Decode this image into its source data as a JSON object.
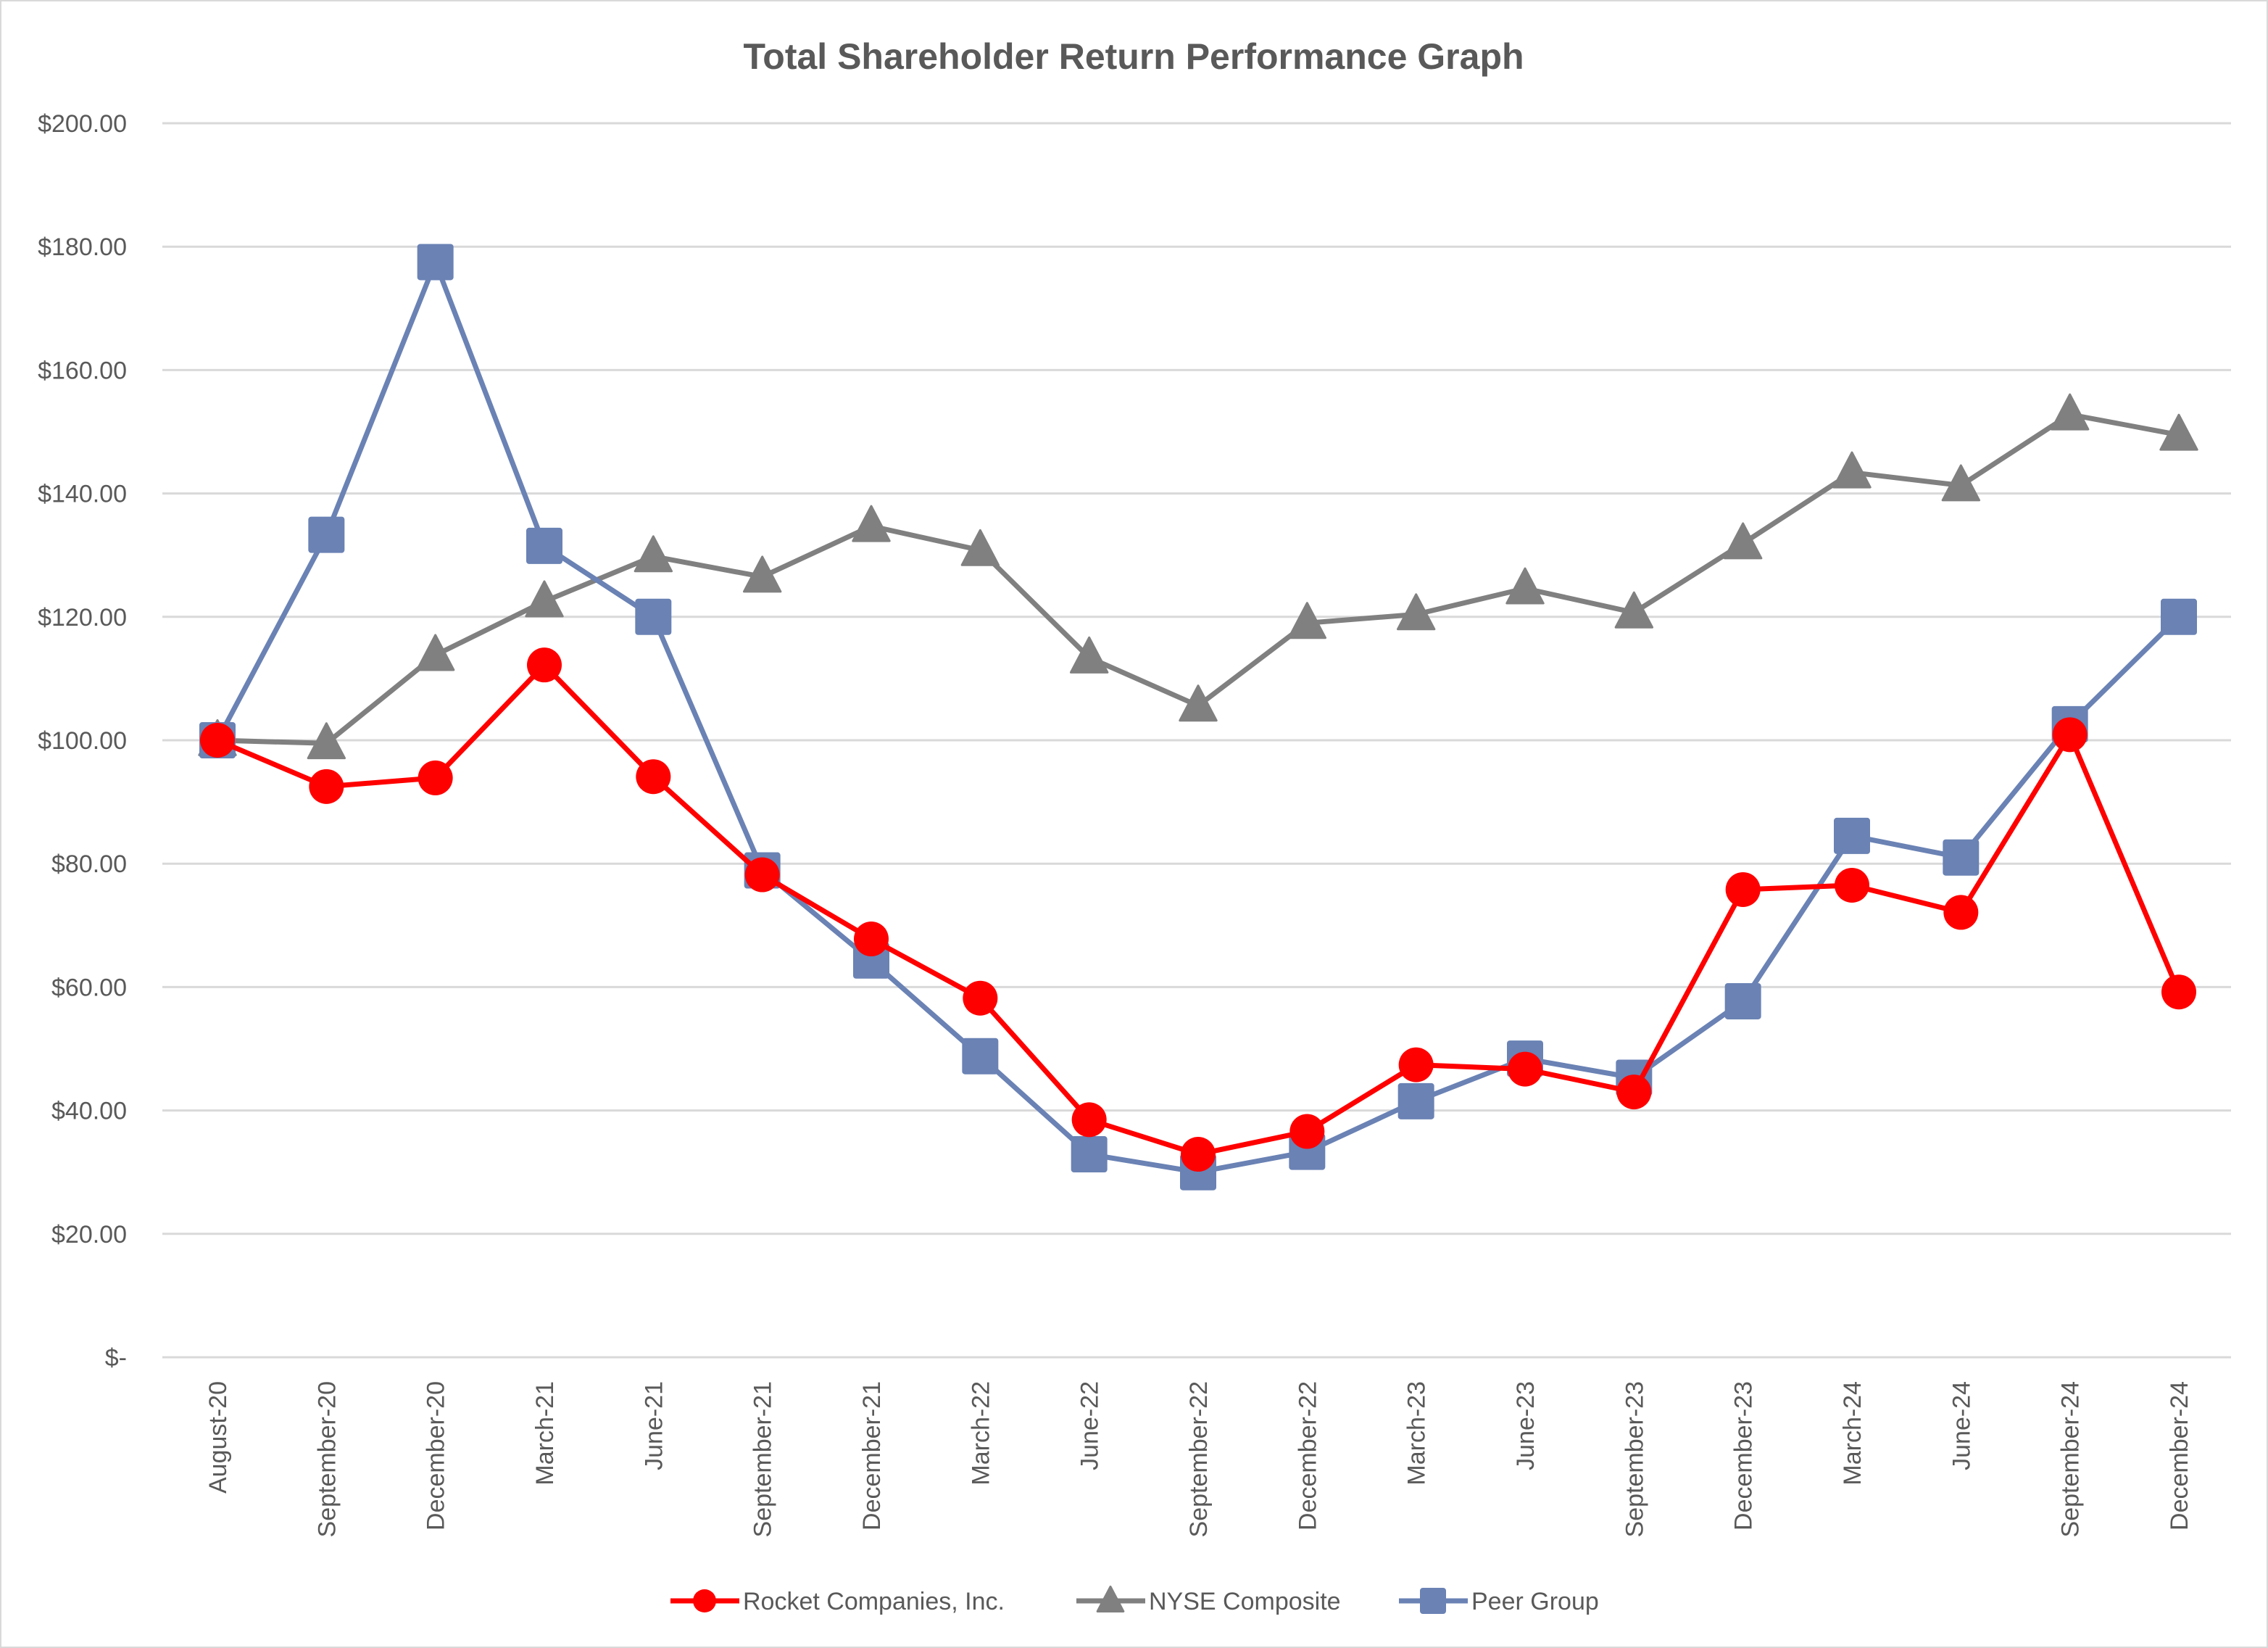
{
  "chart_data": {
    "type": "line",
    "title": "Total Shareholder Return Performance Graph",
    "xlabel": "",
    "ylabel": "",
    "ylim": [
      0,
      200
    ],
    "y_ticks": [
      "$-",
      "$20.00",
      "$40.00",
      "$60.00",
      "$80.00",
      "$100.00",
      "$120.00",
      "$140.00",
      "$160.00",
      "$180.00",
      "$200.00"
    ],
    "grid": true,
    "legend_position": "bottom",
    "categories": [
      "August-20",
      "September-20",
      "December-20",
      "March-21",
      "June-21",
      "September-21",
      "December-21",
      "March-22",
      "June-22",
      "September-22",
      "December-22",
      "March-23",
      "June-23",
      "September-23",
      "December-23",
      "March-24",
      "June-24",
      "September-24",
      "December-24"
    ],
    "series": [
      {
        "name": "Rocket Companies, Inc.",
        "color": "#ff0000",
        "marker": "circle",
        "values": [
          100,
          92.5,
          93.9,
          112.2,
          94.1,
          78.2,
          67.8,
          58.2,
          38.5,
          32.9,
          36.6,
          47.4,
          46.7,
          43.0,
          75.8,
          76.5,
          72.1,
          100.9,
          59.2
        ]
      },
      {
        "name": "NYSE Composite",
        "color": "#808080",
        "marker": "triangle",
        "values": [
          100,
          99.5,
          113.8,
          122.5,
          129.8,
          126.5,
          134.7,
          130.8,
          113.4,
          105.6,
          119.0,
          120.4,
          124.6,
          120.7,
          131.9,
          143.4,
          141.3,
          152.8,
          149.5
        ]
      },
      {
        "name": "Peer Group",
        "color": "#6a82b4",
        "marker": "square",
        "values": [
          100,
          133.3,
          177.5,
          131.5,
          120.0,
          78.9,
          64.3,
          48.8,
          32.9,
          30.0,
          33.3,
          41.5,
          48.4,
          45.3,
          57.7,
          84.5,
          81.0,
          102.6,
          120.0
        ]
      }
    ]
  }
}
